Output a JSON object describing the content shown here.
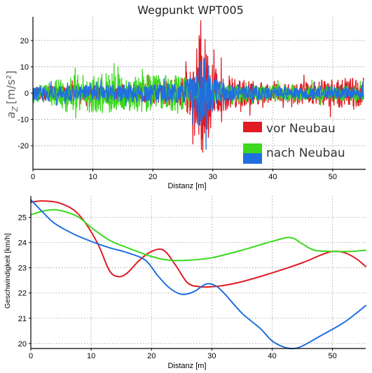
{
  "chart_data": [
    {
      "type": "line",
      "title": "Wegpunkt WPT005",
      "xlabel": "Distanz [m]",
      "ylabel": "a",
      "ylabel_sub": "Z",
      "ylabel_unit": "[m/s²]",
      "xlim": [
        0,
        55.5
      ],
      "ylim": [
        -29,
        29
      ],
      "xticks": [
        0,
        10,
        20,
        30,
        40,
        50
      ],
      "yticks": [
        -20,
        -10,
        0,
        10,
        20
      ],
      "grid": true,
      "legend_position": "right",
      "series": [
        {
          "name": "vor Neubau",
          "color": "#e01b24",
          "amplitude_profile": [
            [
              0,
              3
            ],
            [
              10,
              3
            ],
            [
              15,
              3.5
            ],
            [
              20,
              4
            ],
            [
              25,
              6
            ],
            [
              27,
              12
            ],
            [
              28,
              28
            ],
            [
              29.5,
              14
            ],
            [
              31,
              8
            ],
            [
              33,
              6
            ],
            [
              40,
              3.5
            ],
            [
              47,
              4.5
            ],
            [
              52,
              6
            ],
            [
              55,
              6
            ]
          ]
        },
        {
          "name": "nach Neubau",
          "color": "#3cd81e",
          "amplitude_profile": [
            [
              0,
              3
            ],
            [
              5,
              6
            ],
            [
              10,
              8
            ],
            [
              17,
              7
            ],
            [
              21,
              8
            ],
            [
              26,
              6
            ],
            [
              29,
              4
            ],
            [
              33,
              3.5
            ],
            [
              40,
              3
            ],
            [
              50,
              3
            ],
            [
              55,
              3
            ]
          ]
        },
        {
          "name": "",
          "color": "#1f6fe0",
          "amplitude_profile": [
            [
              0,
              3
            ],
            [
              10,
              3
            ],
            [
              20,
              3.5
            ],
            [
              25,
              4
            ],
            [
              27,
              8
            ],
            [
              28,
              16
            ],
            [
              29.5,
              10
            ],
            [
              31,
              5
            ],
            [
              33,
              3
            ],
            [
              40,
              2.5
            ],
            [
              55,
              2.5
            ]
          ]
        }
      ]
    },
    {
      "type": "line",
      "title": "",
      "xlabel": "Distanz [m]",
      "ylabel": "Geschwindigkeit [km/h]",
      "xlim": [
        0,
        55.5
      ],
      "ylim": [
        19.8,
        25.85
      ],
      "xticks": [
        0,
        10,
        20,
        30,
        40,
        50
      ],
      "yticks": [
        20,
        21,
        22,
        23,
        24,
        25
      ],
      "grid": true,
      "series": [
        {
          "name": "vor Neubau",
          "color": "#e01b24",
          "x": [
            0,
            2,
            5,
            8,
            11,
            13,
            14.5,
            16,
            18,
            20,
            22,
            24,
            26,
            28,
            30,
            32,
            35,
            40,
            45,
            48,
            50,
            52,
            54,
            55.5
          ],
          "y": [
            25.6,
            25.65,
            25.55,
            25.1,
            24.0,
            22.9,
            22.65,
            22.8,
            23.3,
            23.65,
            23.7,
            23.1,
            22.4,
            22.25,
            22.25,
            22.3,
            22.45,
            22.8,
            23.2,
            23.5,
            23.65,
            23.6,
            23.35,
            23.05
          ]
        },
        {
          "name": "nach Neubau",
          "color": "#3cd81e",
          "x": [
            0,
            2,
            4,
            6,
            8,
            10,
            13,
            16,
            20,
            23,
            26,
            30,
            35,
            40,
            43,
            45,
            47,
            50,
            53,
            55.5
          ],
          "y": [
            25.1,
            25.25,
            25.3,
            25.2,
            25.0,
            24.6,
            24.1,
            23.8,
            23.45,
            23.3,
            23.3,
            23.4,
            23.7,
            24.05,
            24.2,
            23.95,
            23.7,
            23.65,
            23.65,
            23.7
          ]
        },
        {
          "name": "",
          "color": "#1f6fe0",
          "x": [
            0,
            2,
            4,
            7,
            10,
            13,
            16,
            19,
            21,
            23,
            25,
            27,
            29,
            30.5,
            32,
            35,
            38,
            40,
            42,
            43.5,
            45,
            48,
            52,
            55.5
          ],
          "y": [
            25.7,
            25.2,
            24.75,
            24.35,
            24.05,
            23.8,
            23.6,
            23.3,
            22.7,
            22.2,
            21.95,
            22.05,
            22.35,
            22.3,
            22.0,
            21.2,
            20.6,
            20.1,
            19.85,
            19.8,
            19.9,
            20.3,
            20.85,
            21.5
          ]
        }
      ]
    }
  ]
}
